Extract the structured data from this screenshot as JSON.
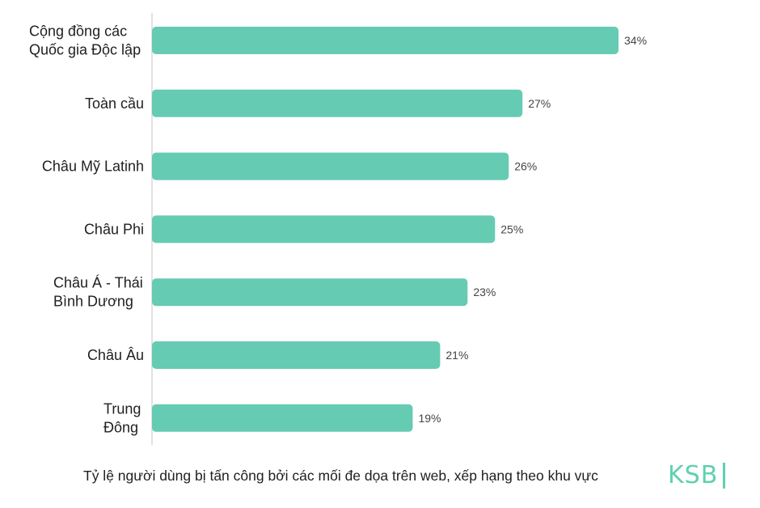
{
  "chart_data": {
    "type": "bar",
    "orientation": "horizontal",
    "categories": [
      [
        "Cộng đồng các",
        "Quốc gia Độc lập"
      ],
      [
        "Toàn cầu"
      ],
      [
        "Châu Mỹ Latinh"
      ],
      [
        "Châu Phi"
      ],
      [
        "Châu Á - Thái",
        "Bình Dương"
      ],
      [
        "Châu Âu"
      ],
      [
        "Trung",
        "Đông"
      ]
    ],
    "values": [
      34,
      27,
      26,
      25,
      23,
      21,
      19
    ],
    "value_labels": [
      "34%",
      "27%",
      "26%",
      "25%",
      "23%",
      "21%",
      "19%"
    ],
    "bar_color": "#66cbb3",
    "axis_color": "#d9d9d9",
    "xlim": [
      0,
      34
    ],
    "grid": false
  },
  "caption": "Tỷ lệ người dùng bị tấn công bởi các mối đe dọa trên web, xếp hạng theo khu vực",
  "logo": {
    "text": "KSB",
    "color": "#5fd0b0"
  }
}
